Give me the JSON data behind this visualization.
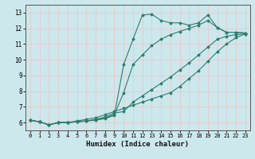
{
  "xlabel": "Humidex (Indice chaleur)",
  "bg_color": "#cce8ec",
  "grid_color": "#e8c8cc",
  "line_color": "#2e7d6e",
  "xlim": [
    -0.5,
    23.5
  ],
  "ylim": [
    5.5,
    13.5
  ],
  "xticks": [
    0,
    1,
    2,
    3,
    4,
    5,
    6,
    7,
    8,
    9,
    10,
    11,
    12,
    13,
    14,
    15,
    16,
    17,
    18,
    19,
    20,
    21,
    22,
    23
  ],
  "yticks": [
    6,
    7,
    8,
    9,
    10,
    11,
    12,
    13
  ],
  "series": [
    {
      "x": [
        0,
        1,
        2,
        3,
        4,
        5,
        6,
        7,
        8,
        9,
        10,
        11,
        12,
        13,
        14,
        15,
        16,
        17,
        18,
        19,
        20,
        21,
        22,
        23
      ],
      "y": [
        6.15,
        6.05,
        5.85,
        6.0,
        6.0,
        6.05,
        6.1,
        6.15,
        6.25,
        6.45,
        9.7,
        11.3,
        12.85,
        12.9,
        12.5,
        12.35,
        12.35,
        12.2,
        12.35,
        12.85,
        12.05,
        11.75,
        11.75,
        11.7
      ]
    },
    {
      "x": [
        0,
        1,
        2,
        3,
        4,
        5,
        6,
        7,
        8,
        9,
        10,
        11,
        12,
        13,
        14,
        15,
        16,
        17,
        18,
        19,
        20,
        21,
        22,
        23
      ],
      "y": [
        6.15,
        6.05,
        5.85,
        6.0,
        6.0,
        6.05,
        6.1,
        6.15,
        6.3,
        6.5,
        7.9,
        9.7,
        10.3,
        10.9,
        11.3,
        11.6,
        11.8,
        12.0,
        12.2,
        12.5,
        12.05,
        11.75,
        11.75,
        11.7
      ]
    },
    {
      "x": [
        0,
        1,
        2,
        3,
        4,
        5,
        6,
        7,
        8,
        9,
        10,
        11,
        12,
        13,
        14,
        15,
        16,
        17,
        18,
        19,
        20,
        21,
        22,
        23
      ],
      "y": [
        6.15,
        6.05,
        5.85,
        6.0,
        6.0,
        6.05,
        6.1,
        6.2,
        6.35,
        6.6,
        6.7,
        7.3,
        7.7,
        8.1,
        8.5,
        8.9,
        9.35,
        9.8,
        10.3,
        10.8,
        11.3,
        11.5,
        11.6,
        11.65
      ]
    },
    {
      "x": [
        0,
        1,
        2,
        3,
        4,
        5,
        6,
        7,
        8,
        9,
        10,
        11,
        12,
        13,
        14,
        15,
        16,
        17,
        18,
        19,
        20,
        21,
        22,
        23
      ],
      "y": [
        6.15,
        6.05,
        5.85,
        6.0,
        6.0,
        6.1,
        6.2,
        6.3,
        6.5,
        6.7,
        6.9,
        7.1,
        7.3,
        7.5,
        7.7,
        7.9,
        8.3,
        8.8,
        9.3,
        9.9,
        10.5,
        11.0,
        11.4,
        11.65
      ]
    }
  ]
}
